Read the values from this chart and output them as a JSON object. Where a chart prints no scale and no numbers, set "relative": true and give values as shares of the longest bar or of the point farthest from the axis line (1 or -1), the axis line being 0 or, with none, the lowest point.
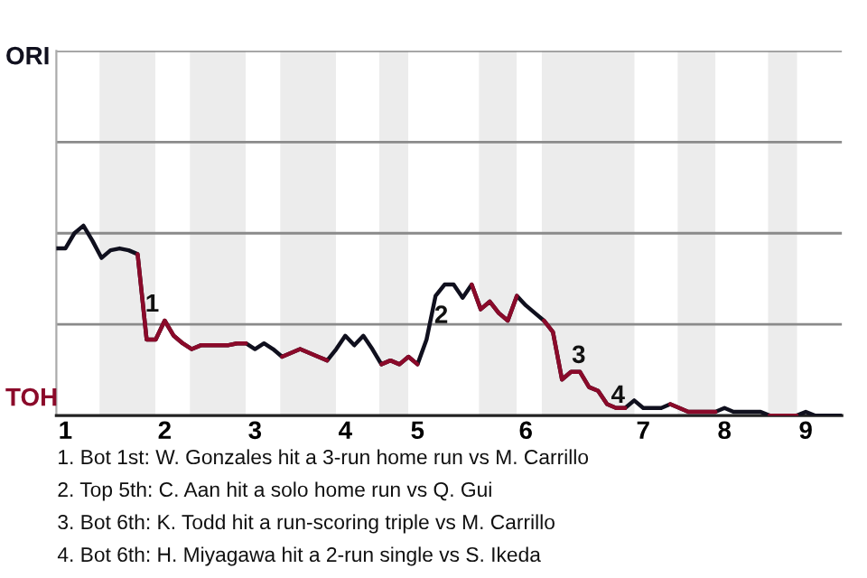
{
  "chart_data": {
    "type": "line",
    "relative": true,
    "categories": [
      null,
      "1",
      null,
      null,
      null,
      null,
      null,
      null,
      null,
      null,
      null,
      null,
      "2",
      null,
      null,
      null,
      null,
      null,
      null,
      null,
      null,
      null,
      "3",
      null,
      null,
      null,
      null,
      null,
      null,
      null,
      null,
      null,
      "4",
      null,
      null,
      null,
      null,
      null,
      null,
      null,
      "5",
      null,
      null,
      null,
      null,
      null,
      null,
      null,
      null,
      null,
      null,
      null,
      "6",
      null,
      null,
      null,
      null,
      null,
      null,
      null,
      null,
      null,
      null,
      null,
      null,
      "7",
      null,
      null,
      null,
      null,
      null,
      null,
      null,
      null,
      "8",
      null,
      null,
      null,
      null,
      null,
      null,
      null,
      null,
      "9",
      null,
      null,
      null,
      null
    ],
    "marker": "none",
    "line_style": "solid",
    "ref_lines": [
      {
        "axis": "y",
        "value": 0.48,
        "color": "#8a8a8a"
      },
      {
        "axis": "y",
        "value": 0.96,
        "color": "#8a8a8a"
      },
      {
        "axis": "y",
        "value": 1.44,
        "color": "#8a8a8a"
      },
      {
        "axis": "y",
        "value": 1.92,
        "color": "#8a8a8a"
      }
    ],
    "series": [
      {
        "color": "#10101e",
        "values": [
          0.88,
          0.88,
          0.96,
          1,
          0.92,
          0.83,
          0.87,
          0.88,
          0.87,
          0.85,
          0.4,
          0.4,
          0.5,
          0.42,
          0.38,
          0.35,
          0.37,
          0.37,
          0.37,
          0.37,
          0.38,
          0.38,
          0.35,
          0.38,
          0.35,
          0.31,
          0.33,
          0.35,
          0.33,
          0.31,
          0.29,
          0.35,
          0.42,
          0.37,
          0.42,
          0.35,
          0.27,
          0.29,
          0.27,
          0.31,
          0.27,
          0.4,
          0.63,
          0.69,
          0.69,
          0.62,
          0.69,
          0.56,
          0.6,
          0.54,
          0.5,
          0.63,
          0.58,
          0.54,
          0.5,
          0.44,
          0.19,
          0.23,
          0.23,
          0.15,
          0.13,
          0.06,
          0.04,
          0.04,
          0.08,
          0.04,
          0.04,
          0.04,
          0.06,
          0.04,
          0.02,
          0.02,
          0.02,
          0.02,
          0.04,
          0.02,
          0.02,
          0.02,
          0.02,
          0,
          0,
          0,
          0,
          0.02,
          0,
          0,
          0,
          0
        ],
        "colors": [
          "#10101e",
          "#10101e",
          "#10101e",
          "#10101e",
          "#10101e",
          "#10101e",
          "#10101e",
          "#10101e",
          "#10101e",
          "#8b0a2a",
          "#8b0a2a",
          "#8b0a2a",
          "#8b0a2a",
          "#8b0a2a",
          "#8b0a2a",
          "#8b0a2a",
          "#8b0a2a",
          "#8b0a2a",
          "#8b0a2a",
          "#8b0a2a",
          "#8b0a2a",
          "#10101e",
          "#10101e",
          "#10101e",
          "#10101e",
          "#8b0a2a",
          "#8b0a2a",
          "#8b0a2a",
          "#8b0a2a",
          "#8b0a2a",
          "#10101e",
          "#10101e",
          "#10101e",
          "#10101e",
          "#10101e",
          "#10101e",
          "#8b0a2a",
          "#8b0a2a",
          "#8b0a2a",
          "#8b0a2a",
          "#10101e",
          "#10101e",
          "#10101e",
          "#10101e",
          "#10101e",
          "#10101e",
          "#8b0a2a",
          "#8b0a2a",
          "#8b0a2a",
          "#8b0a2a",
          "#8b0a2a",
          "#10101e",
          "#10101e",
          "#10101e",
          "#8b0a2a",
          "#8b0a2a",
          "#8b0a2a",
          "#8b0a2a",
          "#8b0a2a",
          "#8b0a2a",
          "#8b0a2a",
          "#8b0a2a",
          "#8b0a2a",
          "#10101e",
          "#10101e",
          "#10101e",
          "#10101e",
          "#10101e",
          "#8b0a2a",
          "#8b0a2a",
          "#8b0a2a",
          "#8b0a2a",
          "#8b0a2a",
          "#10101e",
          "#10101e",
          "#10101e",
          "#10101e",
          "#10101e",
          "#10101e",
          "#8b0a2a",
          "#8b0a2a",
          "#8b0a2a",
          "#10101e",
          "#10101e",
          "#10101e",
          "#10101e",
          "#10101e",
          "#10101e"
        ]
      }
    ],
    "annotations": [
      {
        "text": "1",
        "y": 0.52
      },
      {
        "text": "2",
        "y": 0.46
      },
      {
        "text": "3",
        "y": 0.25
      },
      {
        "text": "4",
        "y": 0.04
      },
      "ORI",
      "TOH",
      "1. Bot 1st: W. Gonzales hit a 3-run home run vs M. Carrillo",
      "2. Top 5th: C. Aan hit a solo home run vs Q. Gui",
      "3. Bot 6th: K. Todd hit a run-scoring triple vs M. Carrillo",
      "4. Bot 6th: H. Miyagawa hit a 2-run single vs S. Ikeda"
    ]
  }
}
